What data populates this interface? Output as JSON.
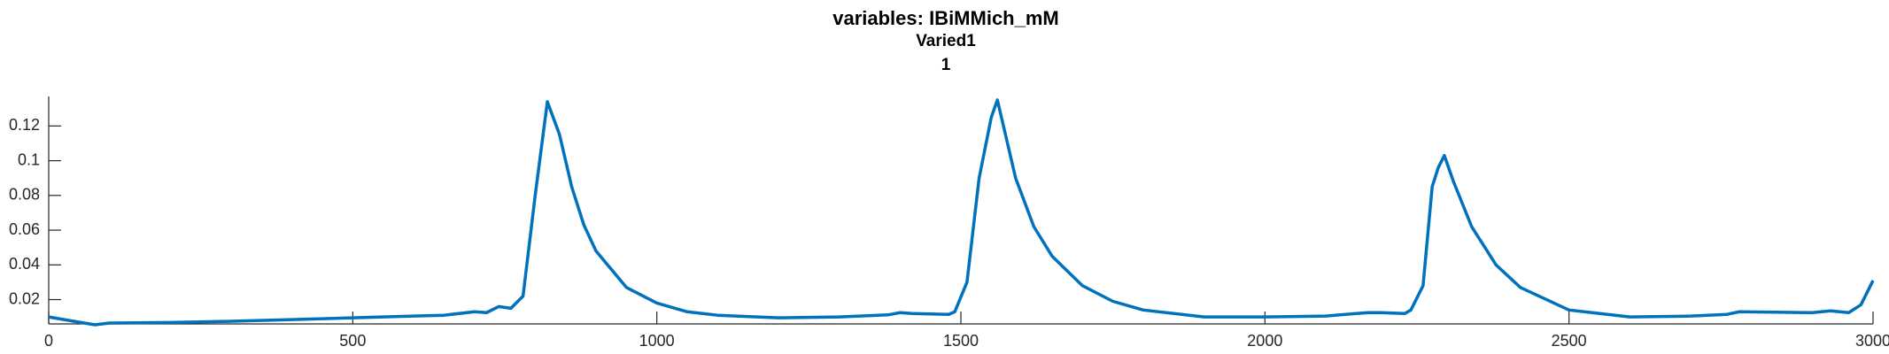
{
  "chart_data": {
    "type": "line",
    "title": "variables: IBiMMich_mM",
    "subtitle": "Varied1",
    "subtitle2": "1",
    "x": [
      0,
      40,
      76,
      100,
      200,
      300,
      400,
      500,
      600,
      650,
      700,
      720,
      740,
      760,
      780,
      800,
      820,
      840,
      860,
      880,
      900,
      950,
      1000,
      1050,
      1100,
      1200,
      1300,
      1380,
      1400,
      1420,
      1480,
      1490,
      1510,
      1530,
      1550,
      1560,
      1570,
      1590,
      1620,
      1650,
      1700,
      1750,
      1800,
      1900,
      2000,
      2100,
      2150,
      2170,
      2190,
      2230,
      2240,
      2260,
      2275,
      2285,
      2295,
      2310,
      2340,
      2380,
      2420,
      2500,
      2600,
      2700,
      2760,
      2780,
      2900,
      2930,
      2960,
      2980,
      3000
    ],
    "series": [
      {
        "name": "IBiMMich_mM",
        "color": "#0072bd",
        "values": [
          0.01,
          0.0076,
          0.0055,
          0.0065,
          0.0068,
          0.0075,
          0.0085,
          0.0095,
          0.0105,
          0.011,
          0.013,
          0.0125,
          0.016,
          0.015,
          0.022,
          0.08,
          0.134,
          0.115,
          0.085,
          0.063,
          0.048,
          0.027,
          0.018,
          0.013,
          0.011,
          0.0095,
          0.01,
          0.0112,
          0.0125,
          0.012,
          0.0115,
          0.013,
          0.03,
          0.09,
          0.125,
          0.135,
          0.12,
          0.09,
          0.062,
          0.045,
          0.028,
          0.019,
          0.014,
          0.01,
          0.01,
          0.0105,
          0.012,
          0.0125,
          0.0125,
          0.012,
          0.014,
          0.028,
          0.085,
          0.096,
          0.103,
          0.088,
          0.062,
          0.04,
          0.027,
          0.014,
          0.01,
          0.0105,
          0.0115,
          0.013,
          0.0125,
          0.0135,
          0.0125,
          0.017,
          0.031
        ]
      }
    ],
    "xlim": [
      0,
      3000
    ],
    "xticks": [
      0,
      500,
      1000,
      1500,
      2000,
      2500,
      3000
    ],
    "ylim": [
      0.006,
      0.137
    ],
    "yticks": [
      0.02,
      0.04,
      0.06,
      0.08,
      0.1,
      0.12
    ]
  }
}
